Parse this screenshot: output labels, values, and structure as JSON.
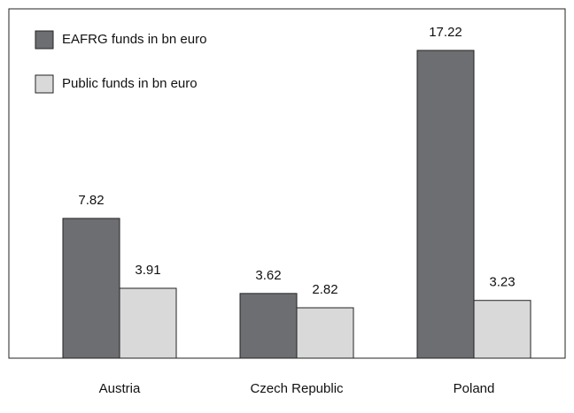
{
  "chart_data": {
    "type": "bar",
    "categories": [
      "Austria",
      "Czech Republic",
      "Poland"
    ],
    "series": [
      {
        "name": "EAFRG funds in bn euro",
        "color": "#6d6e71",
        "values": [
          7.82,
          3.62,
          17.22
        ]
      },
      {
        "name": "Public funds in bn euro",
        "color": "#d9d9d9",
        "values": [
          3.91,
          2.82,
          3.23
        ]
      }
    ],
    "legend": "upper left"
  }
}
